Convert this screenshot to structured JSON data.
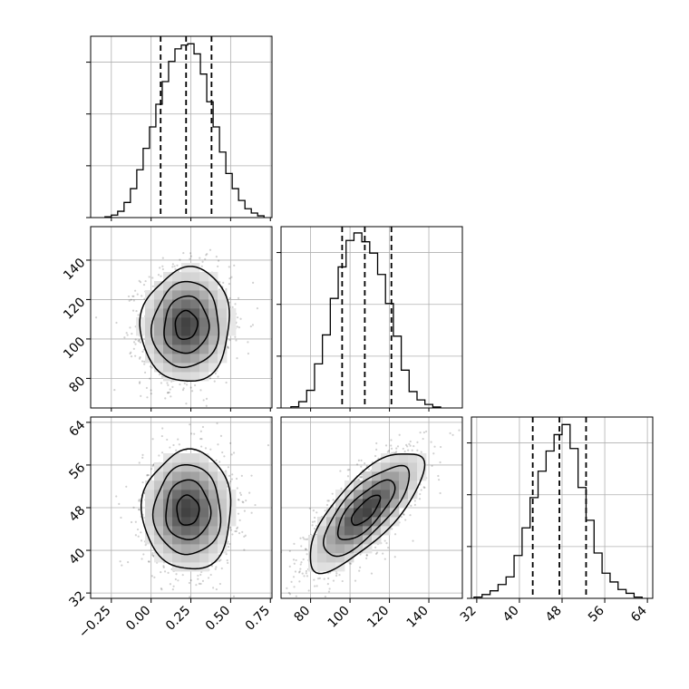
{
  "chart_data": {
    "type": "corner",
    "grid": true,
    "parameters": [
      {
        "id": "p0",
        "range": [
          -0.38,
          0.76
        ],
        "tick_values": [
          -0.25,
          0.0,
          0.25,
          0.5,
          0.75
        ],
        "tick_labels": [
          "−0.25",
          "0.00",
          "0.25",
          "0.50",
          "0.75"
        ],
        "quantiles": [
          0.06,
          0.22,
          0.38
        ],
        "histogram": {
          "edges": [
            -0.29,
            -0.25,
            -0.21,
            -0.17,
            -0.13,
            -0.09,
            -0.05,
            -0.01,
            0.03,
            0.07,
            0.11,
            0.15,
            0.19,
            0.23,
            0.27,
            0.31,
            0.35,
            0.39,
            0.43,
            0.47,
            0.51,
            0.55,
            0.59,
            0.63,
            0.67,
            0.71
          ],
          "counts": [
            3,
            10,
            25,
            60,
            115,
            190,
            275,
            360,
            450,
            540,
            620,
            670,
            685,
            690,
            650,
            570,
            460,
            360,
            260,
            175,
            115,
            68,
            35,
            18,
            7
          ],
          "ylim": [
            0,
            720
          ]
        }
      },
      {
        "id": "p1",
        "range": [
          65,
          157
        ],
        "tick_values": [
          80,
          100,
          120,
          140
        ],
        "tick_labels": [
          "80",
          "100",
          "120",
          "140"
        ],
        "quantiles": [
          96,
          107.5,
          121
        ],
        "histogram": {
          "edges": [
            70,
            74,
            78,
            82,
            86,
            90,
            94,
            98,
            102,
            106,
            110,
            114,
            118,
            122,
            126,
            130,
            134,
            138,
            142,
            146
          ],
          "counts": [
            5,
            25,
            70,
            175,
            290,
            435,
            560,
            665,
            695,
            660,
            615,
            530,
            415,
            285,
            150,
            65,
            32,
            14,
            4
          ],
          "ylim": [
            0,
            720
          ]
        }
      },
      {
        "id": "p2",
        "range": [
          31,
          65
        ],
        "tick_values": [
          32,
          40,
          48,
          56,
          64
        ],
        "tick_labels": [
          "32",
          "40",
          "48",
          "56",
          "64"
        ],
        "quantiles": [
          42.5,
          47.5,
          52.5
        ],
        "histogram": {
          "edges": [
            31.5,
            33,
            34.5,
            36,
            37.5,
            39,
            40.5,
            42,
            43.5,
            45,
            46.5,
            48,
            49.5,
            51,
            52.5,
            54,
            55.5,
            57,
            58.5,
            60,
            61.5,
            63
          ],
          "counts": [
            5,
            15,
            30,
            55,
            85,
            170,
            280,
            400,
            505,
            585,
            650,
            690,
            595,
            440,
            310,
            180,
            100,
            65,
            35,
            20,
            5
          ],
          "ylim": [
            0,
            720
          ]
        }
      }
    ],
    "pairs": [
      {
        "x": "p0",
        "y": "p1",
        "mean": [
          0.22,
          107
        ],
        "sd": [
          0.14,
          14.5
        ],
        "rho": 0.05,
        "contour_sigmas": [
          0.5,
          1.0,
          1.5,
          2.0
        ]
      },
      {
        "x": "p0",
        "y": "p2",
        "mean": [
          0.23,
          47.5
        ],
        "sd": [
          0.14,
          5.6
        ],
        "rho": 0.0,
        "contour_sigmas": [
          0.5,
          1.0,
          1.5,
          2.0
        ]
      },
      {
        "x": "p1",
        "y": "p2",
        "mean": [
          108,
          47.5
        ],
        "sd": [
          14.5,
          5.6
        ],
        "rho": 0.75,
        "contour_sigmas": [
          0.5,
          1.0,
          1.5,
          2.0
        ]
      }
    ]
  }
}
